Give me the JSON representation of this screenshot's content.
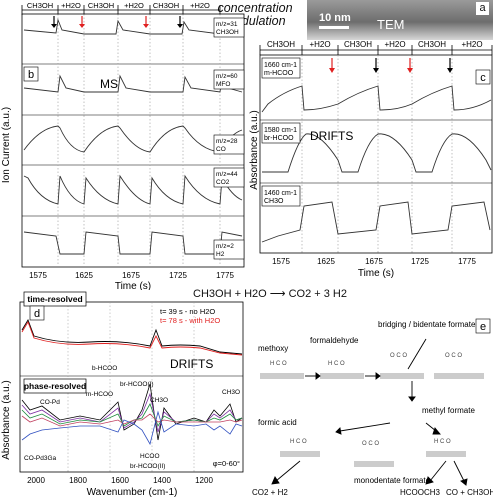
{
  "top_title": "concentration\nmodulation",
  "panels": {
    "a": {
      "letter": "a",
      "scale": "10 nm",
      "label": "TEM"
    },
    "b": {
      "letter": "b",
      "method": "MS",
      "y_axis": "Ion Current (a.u.)",
      "x_axis": "Time (s)",
      "x_ticks": [
        "1575",
        "1625",
        "1675",
        "1725",
        "1775"
      ],
      "phases": [
        "CH3OH",
        "+H2O",
        "CH3OH",
        "+H2O",
        "CH3OH",
        "+H2O"
      ],
      "traces": [
        {
          "label": "m/z=31",
          "sub": "CH3OH"
        },
        {
          "label": "m/z=60",
          "sub": "MFO"
        },
        {
          "label": "m/z=28",
          "sub": "CO"
        },
        {
          "label": "m/z=44",
          "sub": "CO2"
        },
        {
          "label": "m/z=2",
          "sub": "H2"
        }
      ]
    },
    "c": {
      "letter": "c",
      "method": "DRIFTS",
      "y_axis": "Absorbance (a.u.)",
      "x_axis": "Time (s)",
      "x_ticks": [
        "1575",
        "1625",
        "1675",
        "1725",
        "1775"
      ],
      "phases": [
        "CH3OH",
        "+H2O",
        "CH3OH",
        "+H2O",
        "CH3OH",
        "+H2O"
      ],
      "traces": [
        {
          "label": "1660 cm-1",
          "sub": "m-HCOO"
        },
        {
          "label": "1580 cm-1",
          "sub": "br-HCOO"
        },
        {
          "label": "1460 cm-1",
          "sub": "CH3O"
        }
      ]
    },
    "reaction": "CH3OH + H2O ⟶ CO2 + 3 H2",
    "d": {
      "letter": "d",
      "method": "DRIFTS",
      "box_top": "time-resolved",
      "box_bottom": "phase-resolved",
      "legend": [
        "t= 39 s - no H2O",
        "t= 78 s - with H2O"
      ],
      "legend_colors": [
        "#000000",
        "#e02020"
      ],
      "x_axis": "Wavenumber (cm-1)",
      "y_axis": "Absorbance (a.u.)",
      "x_ticks": [
        "2000",
        "1800",
        "1600",
        "1400",
        "1200"
      ],
      "phi": "φ=0-60°",
      "labels": [
        "b-HCOO",
        "m-HCOO",
        "br-HCOO(I)",
        "CH3O",
        "HCOO",
        "br-HCOO(II)",
        "CH3O",
        "CO-Pd",
        "CO-Pd3Ga"
      ]
    },
    "e": {
      "letter": "e",
      "species": [
        "methoxy",
        "formaldehyde",
        "bridging / bidentate formate",
        "formic acid",
        "monodentate\nformate",
        "methyl formate"
      ],
      "products": [
        "CO2 + H2",
        "HCOOCH3",
        "CO + CH3OH"
      ]
    }
  }
}
